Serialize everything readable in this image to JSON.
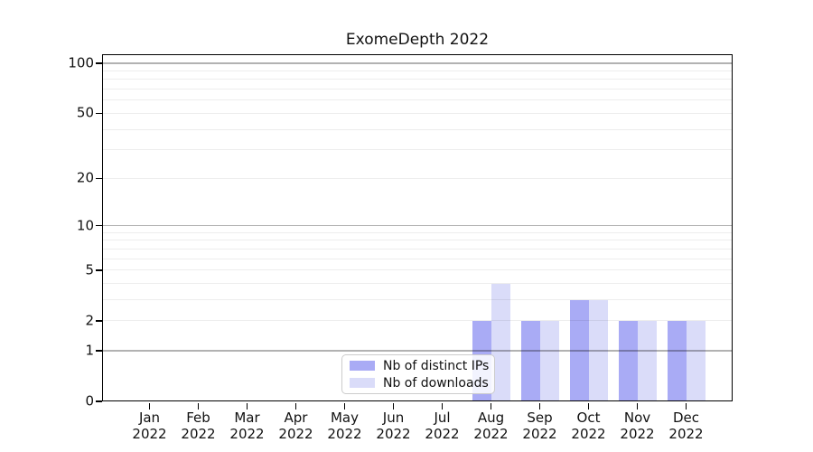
{
  "figure": {
    "title": "ExomeDepth 2022"
  },
  "chart_data": {
    "type": "bar",
    "title": "ExomeDepth 2022",
    "xlabel": "",
    "ylabel": "",
    "categories": [
      "Jan",
      "Feb",
      "Mar",
      "Apr",
      "May",
      "Jun",
      "Jul",
      "Aug",
      "Sep",
      "Oct",
      "Nov",
      "Dec"
    ],
    "category_year": "2022",
    "series": [
      {
        "name": "Nb of distinct IPs",
        "color": "#a9abf5",
        "values": [
          0,
          0,
          0,
          0,
          0,
          0,
          0,
          2,
          2,
          3,
          2,
          2
        ]
      },
      {
        "name": "Nb of downloads",
        "color": "#dadcf9",
        "values": [
          0,
          0,
          0,
          0,
          0,
          0,
          0,
          4,
          2,
          3,
          2,
          2
        ]
      }
    ],
    "yscale": "log1p",
    "ylim": [
      0,
      100
    ],
    "y_ticks": [
      0,
      1,
      2,
      5,
      10,
      20,
      50,
      100
    ],
    "grid": "horizontal",
    "grid_decade_lines": [
      1,
      10,
      100
    ],
    "grid_minor_lines": [
      2,
      3,
      4,
      5,
      6,
      7,
      8,
      9,
      20,
      30,
      40,
      50,
      60,
      70,
      80,
      90
    ],
    "legend": {
      "position": "inside-bottom-center",
      "items": [
        "Nb of distinct IPs",
        "Nb of downloads"
      ]
    },
    "colors": {
      "grid_major": "rgba(0,0,0,0.30)",
      "grid_minor": "rgba(0,0,0,0.07)",
      "axis": "#000000",
      "legend_border": "#cccccc",
      "legend_background": "rgba(255,255,255,0.85)"
    }
  }
}
